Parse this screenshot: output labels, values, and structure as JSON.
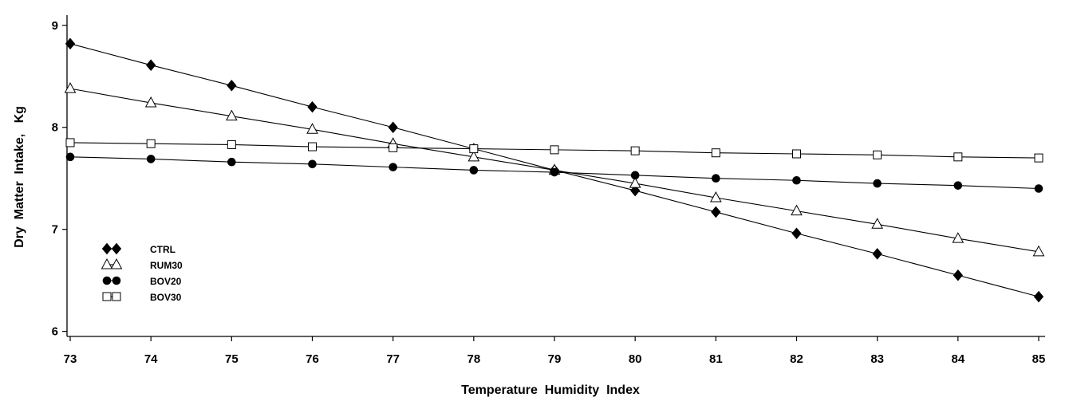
{
  "chart_data": {
    "type": "line",
    "title": "",
    "xlabel": "Temperature  Humidity  Index",
    "ylabel": "Dry  Matter  Intake,   Kg",
    "x": [
      73,
      74,
      75,
      76,
      77,
      78,
      79,
      80,
      81,
      82,
      83,
      84,
      85
    ],
    "xlim": [
      73,
      85
    ],
    "ylim": [
      5.95,
      9.1
    ],
    "yticks": [
      6,
      7,
      8,
      9
    ],
    "grid": false,
    "legend_position": "left",
    "series": [
      {
        "name": "CTRL",
        "marker": "filled-diamond",
        "values": [
          8.82,
          8.61,
          8.41,
          8.2,
          8.0,
          7.79,
          7.58,
          7.38,
          7.17,
          6.96,
          6.76,
          6.55,
          6.34
        ]
      },
      {
        "name": "RUM30",
        "marker": "open-triangle",
        "values": [
          8.38,
          8.24,
          8.11,
          7.98,
          7.84,
          7.71,
          7.58,
          7.45,
          7.31,
          7.18,
          7.05,
          6.91,
          6.78
        ]
      },
      {
        "name": "BOV20",
        "marker": "filled-circle",
        "values": [
          7.71,
          7.69,
          7.66,
          7.64,
          7.61,
          7.58,
          7.56,
          7.53,
          7.5,
          7.48,
          7.45,
          7.43,
          7.4
        ]
      },
      {
        "name": "BOV30",
        "marker": "open-square",
        "values": [
          7.85,
          7.84,
          7.83,
          7.81,
          7.8,
          7.79,
          7.78,
          7.77,
          7.75,
          7.74,
          7.73,
          7.71,
          7.7
        ]
      }
    ]
  }
}
